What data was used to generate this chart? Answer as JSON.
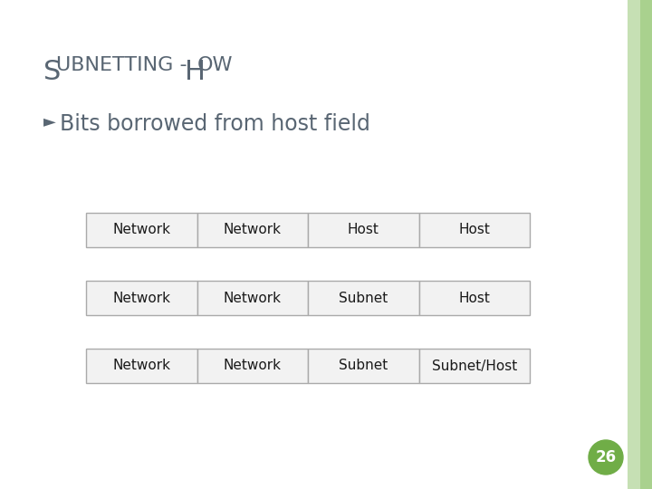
{
  "title_part1": "S",
  "title_part2": "UBNETTING -H",
  "title_part3": "OW",
  "title_color": "#596673",
  "bullet_arrow": "►",
  "bullet_text": "Bits borrowed from host field",
  "bullet_color": "#596673",
  "background_color": "#ffffff",
  "right_stripe1_color": "#c6e0b4",
  "right_stripe2_color": "#a9d18e",
  "rows": [
    [
      "Network",
      "Network",
      "Host",
      "Host"
    ],
    [
      "Network",
      "Network",
      "Subnet",
      "Host"
    ],
    [
      "Network",
      "Network",
      "Subnet",
      "Subnet/Host"
    ]
  ],
  "table_border_color": "#aaaaaa",
  "table_fill_color": "#f2f2f2",
  "table_text_color": "#1a1a1a",
  "page_number": "26",
  "page_circle_color": "#70ad47",
  "page_text_color": "#ffffff"
}
